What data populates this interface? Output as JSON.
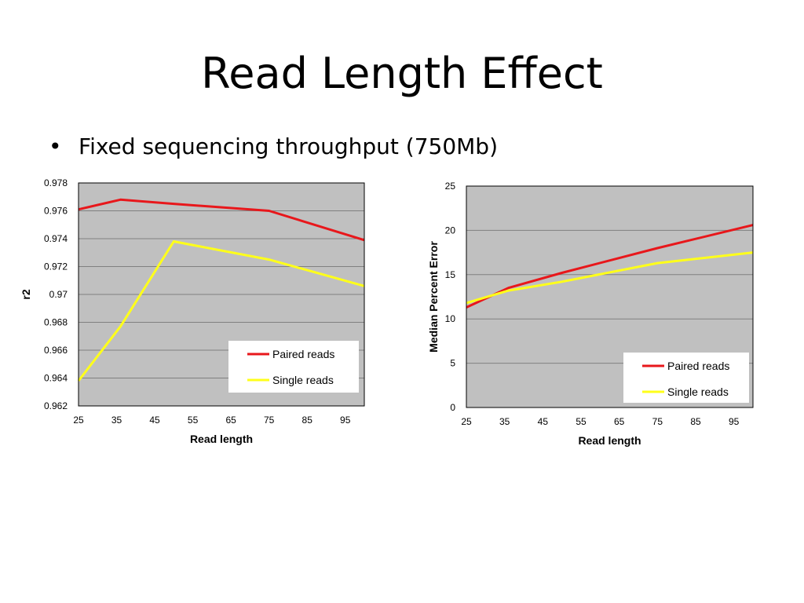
{
  "slide": {
    "title": "Read Length Effect",
    "bullet_symbol": "•",
    "bullet_text": "Fixed sequencing throughput (750Mb)"
  },
  "colors": {
    "plot_background": "#c0c0c0",
    "gridline": "#808080",
    "paired": "#e8171b",
    "single": "#ffff1a"
  },
  "chart_data": [
    {
      "type": "line",
      "title": "",
      "xlabel": "Read length",
      "ylabel": "r2",
      "xlim": [
        25,
        100
      ],
      "ylim": [
        0.962,
        0.978
      ],
      "x_ticks": [
        25,
        35,
        45,
        55,
        65,
        75,
        85,
        95
      ],
      "y_ticks": [
        0.962,
        0.964,
        0.966,
        0.968,
        0.97,
        0.972,
        0.974,
        0.976,
        0.978
      ],
      "y_tick_labels": [
        "0.962",
        "0.964",
        "0.966",
        "0.968",
        "0.97",
        "0.972",
        "0.974",
        "0.976",
        "0.978"
      ],
      "grid": true,
      "legend": "bottom-right",
      "series": [
        {
          "name": "Paired reads",
          "color": "#e8171b",
          "x": [
            25,
            36,
            50,
            75,
            100
          ],
          "y": [
            0.9761,
            0.9768,
            0.9765,
            0.976,
            0.9739
          ]
        },
        {
          "name": "Single reads",
          "color": "#ffff1a",
          "x": [
            25,
            36,
            50,
            75,
            100
          ],
          "y": [
            0.9638,
            0.9677,
            0.9738,
            0.9725,
            0.9706
          ]
        }
      ]
    },
    {
      "type": "line",
      "title": "",
      "xlabel": "Read length",
      "ylabel": "Median Percent Error",
      "xlim": [
        25,
        100
      ],
      "ylim": [
        0,
        25
      ],
      "x_ticks": [
        25,
        35,
        45,
        55,
        65,
        75,
        85,
        95
      ],
      "y_ticks": [
        0,
        5,
        10,
        15,
        20,
        25
      ],
      "y_tick_labels": [
        "0",
        "5",
        "10",
        "15",
        "20",
        "25"
      ],
      "grid": true,
      "legend": "bottom-right",
      "series": [
        {
          "name": "Paired reads",
          "color": "#e8171b",
          "x": [
            25,
            36,
            50,
            75,
            100
          ],
          "y": [
            11.3,
            13.5,
            15.2,
            18.0,
            20.6
          ]
        },
        {
          "name": "Single reads",
          "color": "#ffff1a",
          "x": [
            25,
            36,
            50,
            75,
            100
          ],
          "y": [
            11.8,
            13.2,
            14.2,
            16.3,
            17.5
          ]
        }
      ]
    }
  ]
}
